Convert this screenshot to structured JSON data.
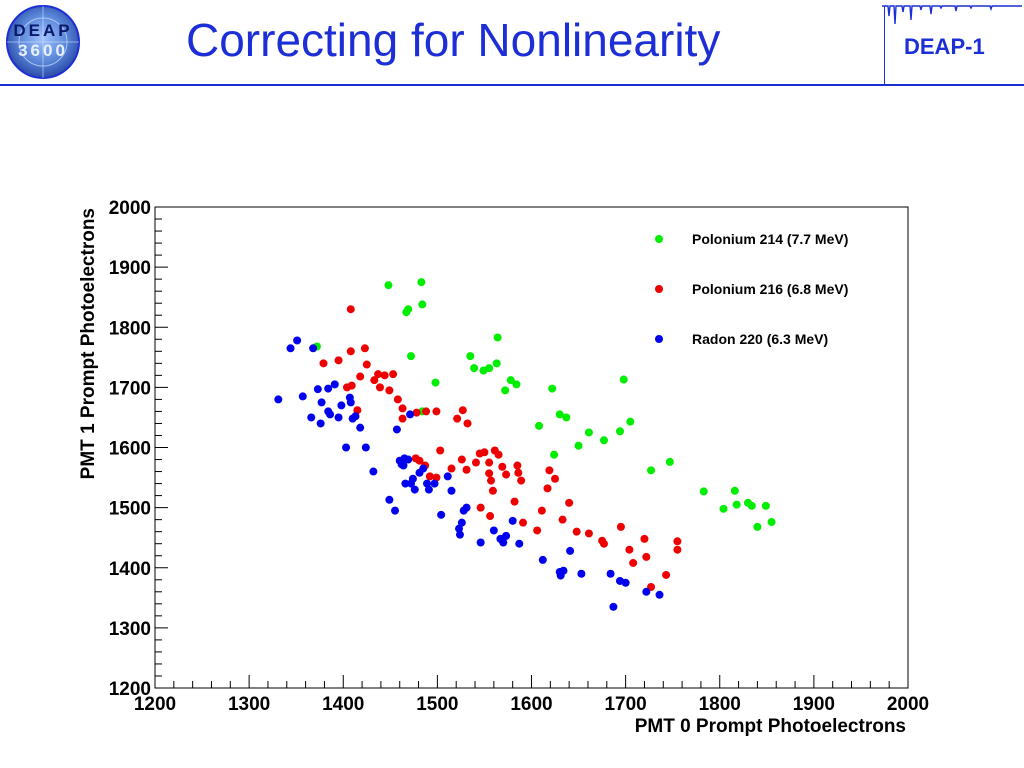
{
  "header": {
    "title": "Correcting for Nonlinearity",
    "project_label": "DEAP-1",
    "logo_text": "DEAP 3600",
    "accent_color": "#1c2fd6"
  },
  "chart_data": {
    "type": "scatter",
    "title": "",
    "xlabel": "PMT 0 Prompt Photoelectrons",
    "ylabel": "PMT 1 Prompt Photoelectrons",
    "xlim": [
      1200,
      2000
    ],
    "ylim": [
      1200,
      2000
    ],
    "xticks": [
      1200,
      1300,
      1400,
      1500,
      1600,
      1700,
      1800,
      1900,
      2000
    ],
    "yticks": [
      1200,
      1300,
      1400,
      1500,
      1600,
      1700,
      1800,
      1900,
      2000
    ],
    "legend_position": "top-right",
    "grid": false,
    "series": [
      {
        "name": "Polonium 214 (7.7 MeV)",
        "color": "#00ee00",
        "points": [
          [
            1448,
            1870
          ],
          [
            1483,
            1875
          ],
          [
            1484,
            1838
          ],
          [
            1467,
            1825
          ],
          [
            1469,
            1830
          ],
          [
            1372,
            1768
          ],
          [
            1472,
            1752
          ],
          [
            1498,
            1708
          ],
          [
            1484,
            1660
          ],
          [
            1535,
            1752
          ],
          [
            1539,
            1732
          ],
          [
            1549,
            1728
          ],
          [
            1555,
            1732
          ],
          [
            1563,
            1740
          ],
          [
            1564,
            1783
          ],
          [
            1572,
            1695
          ],
          [
            1578,
            1712
          ],
          [
            1584,
            1705
          ],
          [
            1608,
            1636
          ],
          [
            1622,
            1698
          ],
          [
            1624,
            1588
          ],
          [
            1630,
            1655
          ],
          [
            1637,
            1650
          ],
          [
            1650,
            1603
          ],
          [
            1661,
            1625
          ],
          [
            1677,
            1612
          ],
          [
            1694,
            1627
          ],
          [
            1698,
            1713
          ],
          [
            1705,
            1643
          ],
          [
            1727,
            1562
          ],
          [
            1747,
            1576
          ],
          [
            1783,
            1527
          ],
          [
            1804,
            1498
          ],
          [
            1816,
            1528
          ],
          [
            1818,
            1505
          ],
          [
            1830,
            1508
          ],
          [
            1834,
            1503
          ],
          [
            1840,
            1468
          ],
          [
            1849,
            1503
          ],
          [
            1855,
            1476
          ]
        ]
      },
      {
        "name": "Polonium 216 (6.8 MeV)",
        "color": "#ee0000",
        "points": [
          [
            1408,
            1830
          ],
          [
            1408,
            1760
          ],
          [
            1423,
            1765
          ],
          [
            1425,
            1738
          ],
          [
            1395,
            1745
          ],
          [
            1379,
            1740
          ],
          [
            1404,
            1700
          ],
          [
            1409,
            1703
          ],
          [
            1418,
            1718
          ],
          [
            1415,
            1662
          ],
          [
            1433,
            1712
          ],
          [
            1437,
            1722
          ],
          [
            1439,
            1700
          ],
          [
            1444,
            1720
          ],
          [
            1449,
            1695
          ],
          [
            1453,
            1722
          ],
          [
            1458,
            1680
          ],
          [
            1463,
            1665
          ],
          [
            1463,
            1648
          ],
          [
            1478,
            1658
          ],
          [
            1488,
            1660
          ],
          [
            1499,
            1660
          ],
          [
            1477,
            1582
          ],
          [
            1481,
            1578
          ],
          [
            1487,
            1570
          ],
          [
            1492,
            1552
          ],
          [
            1499,
            1550
          ],
          [
            1503,
            1595
          ],
          [
            1521,
            1648
          ],
          [
            1527,
            1662
          ],
          [
            1532,
            1640
          ],
          [
            1526,
            1580
          ],
          [
            1531,
            1563
          ],
          [
            1515,
            1565
          ],
          [
            1541,
            1575
          ],
          [
            1545,
            1590
          ],
          [
            1550,
            1592
          ],
          [
            1555,
            1575
          ],
          [
            1555,
            1557
          ],
          [
            1557,
            1545
          ],
          [
            1559,
            1528
          ],
          [
            1561,
            1595
          ],
          [
            1565,
            1588
          ],
          [
            1569,
            1568
          ],
          [
            1573,
            1555
          ],
          [
            1582,
            1510
          ],
          [
            1585,
            1570
          ],
          [
            1586,
            1558
          ],
          [
            1589,
            1545
          ],
          [
            1591,
            1475
          ],
          [
            1546,
            1500
          ],
          [
            1556,
            1486
          ],
          [
            1606,
            1462
          ],
          [
            1611,
            1495
          ],
          [
            1617,
            1532
          ],
          [
            1619,
            1562
          ],
          [
            1625,
            1548
          ],
          [
            1633,
            1480
          ],
          [
            1640,
            1508
          ],
          [
            1648,
            1460
          ],
          [
            1661,
            1457
          ],
          [
            1675,
            1445
          ],
          [
            1677,
            1440
          ],
          [
            1695,
            1468
          ],
          [
            1704,
            1430
          ],
          [
            1708,
            1408
          ],
          [
            1720,
            1448
          ],
          [
            1722,
            1418
          ],
          [
            1727,
            1368
          ],
          [
            1743,
            1388
          ],
          [
            1755,
            1444
          ],
          [
            1755,
            1430
          ]
        ]
      },
      {
        "name": "Radon 220 (6.3 MeV)",
        "color": "#0000ee",
        "points": [
          [
            1331,
            1680
          ],
          [
            1344,
            1765
          ],
          [
            1351,
            1778
          ],
          [
            1357,
            1685
          ],
          [
            1366,
            1650
          ],
          [
            1368,
            1765
          ],
          [
            1373,
            1697
          ],
          [
            1376,
            1640
          ],
          [
            1377,
            1675
          ],
          [
            1384,
            1698
          ],
          [
            1384,
            1660
          ],
          [
            1386,
            1655
          ],
          [
            1391,
            1705
          ],
          [
            1395,
            1650
          ],
          [
            1398,
            1670
          ],
          [
            1403,
            1600
          ],
          [
            1407,
            1683
          ],
          [
            1408,
            1675
          ],
          [
            1410,
            1648
          ],
          [
            1413,
            1652
          ],
          [
            1418,
            1633
          ],
          [
            1424,
            1600
          ],
          [
            1432,
            1560
          ],
          [
            1449,
            1513
          ],
          [
            1455,
            1495
          ],
          [
            1457,
            1630
          ],
          [
            1460,
            1578
          ],
          [
            1462,
            1572
          ],
          [
            1464,
            1570
          ],
          [
            1465,
            1582
          ],
          [
            1466,
            1540
          ],
          [
            1469,
            1580
          ],
          [
            1471,
            1655
          ],
          [
            1472,
            1540
          ],
          [
            1474,
            1548
          ],
          [
            1476,
            1530
          ],
          [
            1481,
            1558
          ],
          [
            1485,
            1565
          ],
          [
            1489,
            1540
          ],
          [
            1491,
            1530
          ],
          [
            1497,
            1540
          ],
          [
            1504,
            1488
          ],
          [
            1511,
            1552
          ],
          [
            1515,
            1528
          ],
          [
            1523,
            1465
          ],
          [
            1524,
            1455
          ],
          [
            1526,
            1475
          ],
          [
            1528,
            1495
          ],
          [
            1531,
            1500
          ],
          [
            1546,
            1442
          ],
          [
            1560,
            1462
          ],
          [
            1567,
            1448
          ],
          [
            1570,
            1442
          ],
          [
            1573,
            1453
          ],
          [
            1580,
            1478
          ],
          [
            1587,
            1440
          ],
          [
            1612,
            1413
          ],
          [
            1630,
            1393
          ],
          [
            1631,
            1387
          ],
          [
            1634,
            1395
          ],
          [
            1641,
            1428
          ],
          [
            1653,
            1390
          ],
          [
            1684,
            1390
          ],
          [
            1687,
            1335
          ],
          [
            1694,
            1378
          ],
          [
            1700,
            1375
          ],
          [
            1722,
            1360
          ],
          [
            1736,
            1355
          ]
        ]
      }
    ]
  }
}
